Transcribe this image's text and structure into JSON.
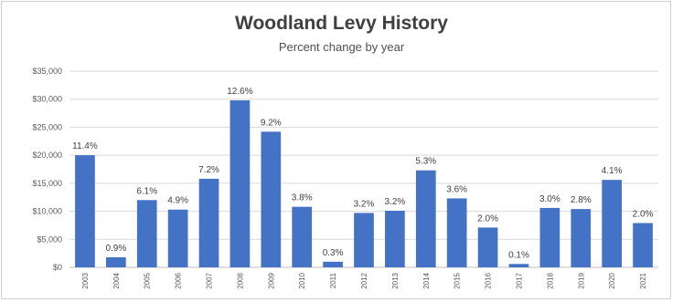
{
  "chart_data": {
    "type": "bar",
    "title": "Woodland Levy History",
    "subtitle": "Percent change by year",
    "xlabel": "",
    "ylabel": "",
    "categories": [
      "2003",
      "2004",
      "2005",
      "2006",
      "2007",
      "2008",
      "2009",
      "2010",
      "2011",
      "2012",
      "2013",
      "2014",
      "2015",
      "2016",
      "2017",
      "2018",
      "2019",
      "2020",
      "2021"
    ],
    "values": [
      20000,
      1800,
      12000,
      10300,
      15800,
      29800,
      24200,
      10800,
      1000,
      9700,
      10100,
      17300,
      12300,
      7100,
      600,
      10600,
      10400,
      15600,
      7900
    ],
    "data_labels": [
      "11.4%",
      "0.9%",
      "6.1%",
      "4.9%",
      "7.2%",
      "12.6%",
      "9.2%",
      "3.8%",
      "0.3%",
      "3.2%",
      "3.2%",
      "5.3%",
      "3.6%",
      "2.0%",
      "0.1%",
      "3.0%",
      "2.8%",
      "4.1%",
      "2.0%"
    ],
    "ylim": [
      0,
      35000
    ],
    "yticks": [
      "$0",
      "$5,000",
      "$10,000",
      "$15,000",
      "$20,000",
      "$25,000",
      "$30,000",
      "$35,000"
    ],
    "grid": true,
    "legend": "none",
    "colors": {
      "bar": "#4472c4",
      "grid": "#d9d9d9",
      "axis": "#bfbfbf"
    }
  }
}
